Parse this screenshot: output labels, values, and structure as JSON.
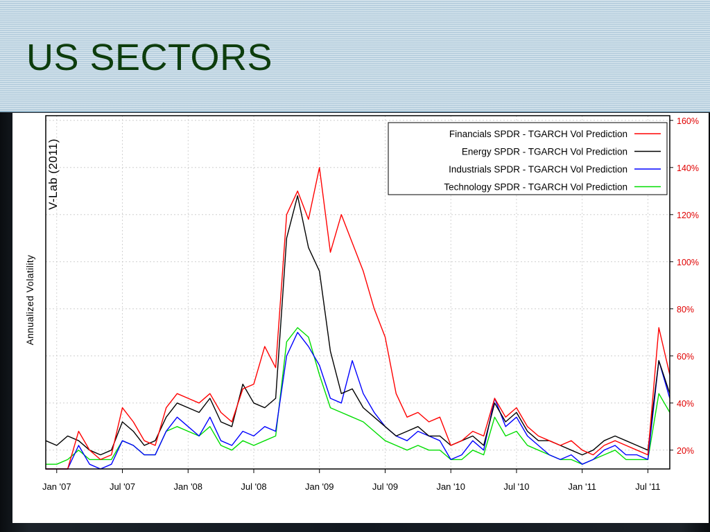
{
  "slide": {
    "title": "US SECTORS"
  },
  "chart_data": {
    "type": "line",
    "watermark": "V-Lab (2011)",
    "ylabel": "Annualized Volatility",
    "xlabel": "",
    "x_ticks": [
      "Jan '07",
      "Jul '07",
      "Jan '08",
      "Jul '08",
      "Jan '09",
      "Jul '09",
      "Jan '10",
      "Jul '10",
      "Jan '11",
      "Jul '11"
    ],
    "y_ticks": [
      "20%",
      "40%",
      "60%",
      "80%",
      "100%",
      "120%",
      "140%",
      "160%"
    ],
    "ylim": [
      12,
      162
    ],
    "x_range": [
      "2006-12",
      "2011-09"
    ],
    "grid": true,
    "legend_position": "top-right",
    "x": [
      "2006-12",
      "2007-01",
      "2007-02",
      "2007-03",
      "2007-04",
      "2007-05",
      "2007-06",
      "2007-07",
      "2007-08",
      "2007-09",
      "2007-10",
      "2007-11",
      "2007-12",
      "2008-01",
      "2008-02",
      "2008-03",
      "2008-04",
      "2008-05",
      "2008-06",
      "2008-07",
      "2008-08",
      "2008-09",
      "2008-10",
      "2008-11",
      "2008-12",
      "2009-01",
      "2009-02",
      "2009-03",
      "2009-04",
      "2009-05",
      "2009-06",
      "2009-07",
      "2009-08",
      "2009-09",
      "2009-10",
      "2009-11",
      "2009-12",
      "2010-01",
      "2010-02",
      "2010-03",
      "2010-04",
      "2010-05",
      "2010-06",
      "2010-07",
      "2010-08",
      "2010-09",
      "2010-10",
      "2010-11",
      "2010-12",
      "2011-01",
      "2011-02",
      "2011-03",
      "2011-04",
      "2011-05",
      "2011-06",
      "2011-07",
      "2011-08",
      "2011-09"
    ],
    "series": [
      {
        "name": "Financials SPDR - TGARCH  Vol Prediction",
        "color": "#ff0000",
        "values": [
          12,
          12,
          12,
          28,
          20,
          16,
          18,
          38,
          32,
          24,
          22,
          38,
          44,
          42,
          40,
          44,
          36,
          32,
          46,
          48,
          64,
          55,
          120,
          130,
          118,
          140,
          104,
          120,
          108,
          96,
          80,
          68,
          44,
          34,
          36,
          32,
          34,
          22,
          24,
          28,
          26,
          42,
          34,
          38,
          30,
          26,
          24,
          22,
          24,
          20,
          18,
          22,
          24,
          22,
          20,
          18,
          72,
          52
        ]
      },
      {
        "name": "Energy SPDR - TGARCH  Vol Prediction",
        "color": "#000000",
        "values": [
          24,
          22,
          26,
          24,
          20,
          18,
          20,
          32,
          28,
          22,
          24,
          34,
          40,
          38,
          36,
          42,
          32,
          30,
          48,
          40,
          38,
          42,
          110,
          128,
          106,
          96,
          62,
          44,
          46,
          38,
          34,
          30,
          26,
          28,
          30,
          26,
          26,
          22,
          24,
          26,
          22,
          40,
          32,
          36,
          28,
          24,
          24,
          22,
          20,
          18,
          20,
          24,
          26,
          24,
          22,
          20,
          58,
          44
        ]
      },
      {
        "name": "Industrials SPDR - TGARCH  Vol Prediction",
        "color": "#0000ff",
        "values": [
          12,
          12,
          12,
          22,
          14,
          12,
          14,
          24,
          22,
          18,
          18,
          28,
          34,
          30,
          26,
          34,
          24,
          22,
          28,
          26,
          30,
          28,
          60,
          70,
          64,
          56,
          42,
          40,
          58,
          44,
          36,
          30,
          26,
          24,
          28,
          26,
          24,
          16,
          18,
          24,
          20,
          42,
          30,
          34,
          26,
          22,
          18,
          16,
          18,
          14,
          16,
          20,
          22,
          18,
          18,
          16,
          58,
          42
        ]
      },
      {
        "name": "Technology SPDR - TGARCH  Vol Prediction",
        "color": "#00dd00",
        "values": [
          14,
          14,
          16,
          20,
          16,
          16,
          16,
          24,
          22,
          18,
          18,
          28,
          30,
          28,
          26,
          30,
          22,
          20,
          24,
          22,
          24,
          26,
          66,
          72,
          68,
          52,
          38,
          36,
          34,
          32,
          28,
          24,
          22,
          20,
          22,
          20,
          20,
          16,
          16,
          20,
          18,
          34,
          26,
          28,
          22,
          20,
          18,
          16,
          16,
          14,
          16,
          18,
          20,
          16,
          16,
          16,
          44,
          36
        ]
      }
    ]
  }
}
